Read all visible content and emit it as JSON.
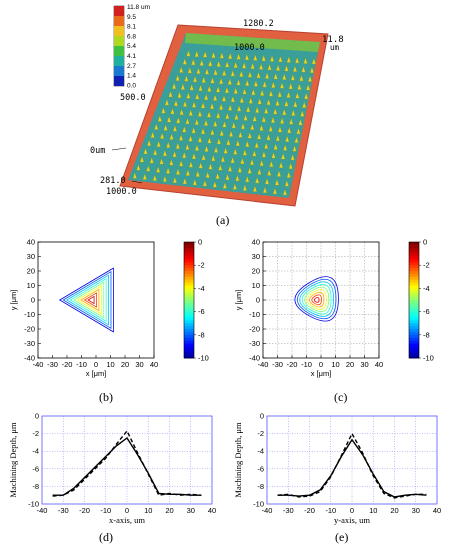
{
  "figure": {
    "panel_labels": [
      "(a)",
      "(b)",
      "(c)",
      "(d)",
      "(e)"
    ],
    "panel_a": {
      "colorbar_ticks": [
        "11.8 um",
        "9.5",
        "8.1",
        "6.8",
        "5.4",
        "4.1",
        "2.7",
        "1.4",
        "0.0"
      ],
      "colorbar_colors": [
        "#d02020",
        "#e86a1a",
        "#f0c020",
        "#b0d820",
        "#40c040",
        "#20b0a0",
        "#1a78d0",
        "#1020b0"
      ],
      "surface_color": "#3a9e9a",
      "rim_color": "#e06040",
      "labels": {
        "y_far": "1280.2",
        "y_mid": "1000.0",
        "z_top": "11.8",
        "z_unit": "um",
        "left_mid": "500.0",
        "origin": "0um",
        "x_near": "281.0",
        "x_far": "1000.0"
      }
    },
    "panel_b": {
      "ylabel": "y [μm]",
      "xlabel": "x [μm]",
      "ticks": [
        "-40",
        "-30",
        "-20",
        "-10",
        "0",
        "10",
        "20",
        "30",
        "40"
      ],
      "colorbar_ticks": [
        "0",
        "-2",
        "-4",
        "-6",
        "-8",
        "-10"
      ]
    },
    "panel_c": {
      "ylabel": "y [μm]",
      "xlabel": "x [μm]",
      "ticks": [
        "-40",
        "-30",
        "-20",
        "-10",
        "0",
        "10",
        "20",
        "30",
        "40"
      ],
      "colorbar_ticks": [
        "0",
        "-2",
        "-4",
        "-6",
        "-8",
        "-10"
      ]
    },
    "panel_d": {
      "ylabel": "Machining Depth, μm",
      "xlabel": "x-axis, um",
      "xticks": [
        "-40",
        "-30",
        "-20",
        "-10",
        "0",
        "10",
        "20",
        "30",
        "40"
      ],
      "yticks": [
        "0",
        "-2",
        "-4",
        "-6",
        "-8",
        "-10"
      ]
    },
    "panel_e": {
      "ylabel": "Machining Depth, μm",
      "xlabel": "y-axis, um",
      "xticks": [
        "-40",
        "-30",
        "-20",
        "-10",
        "0",
        "10",
        "20",
        "30",
        "40"
      ],
      "yticks": [
        "0",
        "-2",
        "-4",
        "-6",
        "-8",
        "-10"
      ]
    }
  },
  "chart_data": [
    {
      "type": "contour",
      "panel": "b",
      "xlim": [
        -40,
        40
      ],
      "ylim": [
        -40,
        40
      ],
      "zlim": [
        -10,
        0
      ],
      "levels": [
        -9,
        -8,
        -7,
        -6,
        -5,
        -4,
        -3,
        -2,
        -1
      ],
      "grid": false,
      "shape": "triangle",
      "outer_vertices": [
        [
          -25,
          0
        ],
        [
          12,
          22
        ],
        [
          12,
          -22
        ]
      ]
    },
    {
      "type": "contour",
      "panel": "c",
      "xlim": [
        -40,
        40
      ],
      "ylim": [
        -40,
        40
      ],
      "zlim": [
        -10,
        0
      ],
      "levels": [
        -9,
        -8,
        -7,
        -6,
        -5,
        -4,
        -3,
        -2,
        -1
      ],
      "grid": true,
      "shape": "rounded-triangle",
      "outer_vertices": [
        [
          -28,
          0
        ],
        [
          12,
          24
        ],
        [
          12,
          -22
        ]
      ]
    },
    {
      "type": "line",
      "panel": "d",
      "xlim": [
        -40,
        40
      ],
      "ylim": [
        -10,
        0
      ],
      "grid": true,
      "series": [
        {
          "style": "solid",
          "x": [
            -35,
            -30,
            -25,
            -20,
            -15,
            -10,
            -5,
            0,
            5,
            10,
            15,
            20,
            25,
            30,
            35
          ],
          "y": [
            -9.0,
            -9.0,
            -8.2,
            -7.0,
            -5.8,
            -4.6,
            -3.4,
            -2.5,
            -4.4,
            -6.5,
            -8.8,
            -8.9,
            -8.9,
            -9.0,
            -9.0
          ]
        },
        {
          "style": "dashed",
          "x": [
            -35,
            -30,
            -25,
            -20,
            -15,
            -10,
            -5,
            0,
            5,
            10,
            15,
            20,
            25,
            30,
            35
          ],
          "y": [
            -9.1,
            -9.0,
            -8.4,
            -7.2,
            -6.0,
            -4.8,
            -3.2,
            -1.7,
            -4.2,
            -6.6,
            -9.0,
            -8.8,
            -9.0,
            -8.9,
            -9.0
          ]
        }
      ]
    },
    {
      "type": "line",
      "panel": "e",
      "xlim": [
        -40,
        40
      ],
      "ylim": [
        -10,
        0
      ],
      "grid": true,
      "series": [
        {
          "style": "solid",
          "x": [
            -35,
            -30,
            -25,
            -20,
            -15,
            -10,
            -5,
            0,
            5,
            10,
            15,
            20,
            25,
            30,
            35
          ],
          "y": [
            -9.0,
            -9.0,
            -9.1,
            -9.0,
            -8.4,
            -6.8,
            -4.6,
            -2.7,
            -4.4,
            -6.6,
            -8.6,
            -9.2,
            -9.0,
            -8.9,
            -9.0
          ]
        },
        {
          "style": "dashed",
          "x": [
            -35,
            -30,
            -25,
            -20,
            -15,
            -10,
            -5,
            0,
            5,
            10,
            15,
            20,
            25,
            30,
            35
          ],
          "y": [
            -9.0,
            -8.9,
            -9.2,
            -9.1,
            -8.6,
            -6.9,
            -4.5,
            -2.0,
            -4.2,
            -6.8,
            -8.8,
            -9.3,
            -9.1,
            -8.9,
            -8.9
          ]
        }
      ]
    }
  ]
}
